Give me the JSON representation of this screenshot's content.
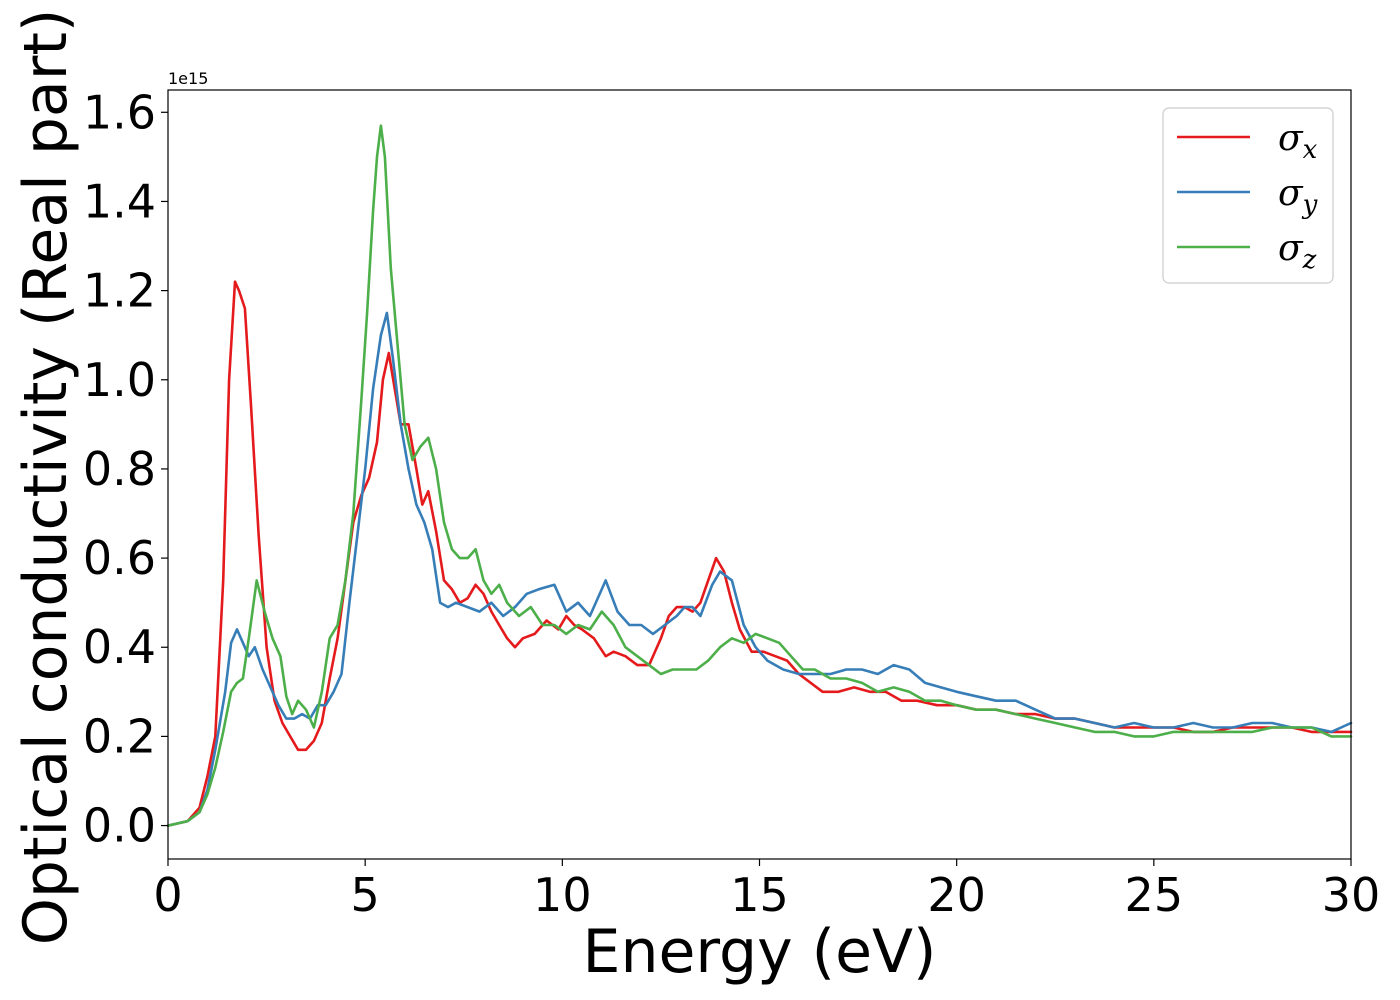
{
  "chart_data": {
    "type": "line",
    "xlabel": "Energy (eV)",
    "ylabel": "Optical conductivity (Real part)",
    "y_offset_text": "1e15",
    "xlim": [
      0,
      30
    ],
    "ylim": [
      -0.075,
      1.65
    ],
    "x_ticks": [
      0,
      5,
      10,
      15,
      20,
      25,
      30
    ],
    "x_tick_labels": [
      "0",
      "5",
      "10",
      "15",
      "20",
      "25",
      "30"
    ],
    "y_ticks": [
      0.0,
      0.2,
      0.4,
      0.6,
      0.8,
      1.0,
      1.2,
      1.4,
      1.6
    ],
    "y_tick_labels": [
      "0.0",
      "0.2",
      "0.4",
      "0.6",
      "0.8",
      "1.0",
      "1.2",
      "1.4",
      "1.6"
    ],
    "grid": false,
    "legend_position": "top-right",
    "series": [
      {
        "name": "σ",
        "subscript": "x",
        "color": "#e41a1c",
        "x": [
          0,
          0.5,
          0.8,
          1.0,
          1.2,
          1.4,
          1.55,
          1.7,
          1.8,
          1.95,
          2.1,
          2.3,
          2.5,
          2.7,
          2.9,
          3.1,
          3.3,
          3.5,
          3.7,
          3.9,
          4.1,
          4.3,
          4.5,
          4.7,
          4.9,
          5.1,
          5.3,
          5.45,
          5.6,
          5.75,
          5.9,
          6.1,
          6.3,
          6.45,
          6.6,
          6.8,
          7.0,
          7.2,
          7.4,
          7.6,
          7.8,
          8.0,
          8.2,
          8.4,
          8.6,
          8.8,
          9.0,
          9.3,
          9.6,
          9.9,
          10.1,
          10.3,
          10.5,
          10.8,
          11.1,
          11.3,
          11.6,
          11.9,
          12.2,
          12.5,
          12.7,
          12.9,
          13.1,
          13.3,
          13.5,
          13.7,
          13.9,
          14.1,
          14.3,
          14.5,
          14.8,
          15.1,
          15.4,
          15.7,
          16.0,
          16.3,
          16.6,
          17.0,
          17.4,
          17.8,
          18.2,
          18.6,
          19.0,
          19.5,
          20.0,
          20.5,
          21.0,
          21.5,
          22.0,
          22.5,
          23.0,
          23.5,
          24.0,
          24.5,
          25.0,
          25.5,
          26.0,
          26.5,
          27.0,
          27.5,
          28.0,
          28.5,
          29.0,
          29.5,
          30.0
        ],
        "values": [
          0.0,
          0.01,
          0.04,
          0.11,
          0.2,
          0.55,
          1.0,
          1.22,
          1.2,
          1.16,
          0.95,
          0.65,
          0.4,
          0.28,
          0.23,
          0.2,
          0.17,
          0.17,
          0.19,
          0.23,
          0.33,
          0.42,
          0.55,
          0.68,
          0.74,
          0.78,
          0.86,
          1.0,
          1.06,
          0.98,
          0.9,
          0.9,
          0.8,
          0.72,
          0.75,
          0.66,
          0.55,
          0.53,
          0.5,
          0.51,
          0.54,
          0.52,
          0.48,
          0.45,
          0.42,
          0.4,
          0.42,
          0.43,
          0.46,
          0.44,
          0.47,
          0.45,
          0.44,
          0.42,
          0.38,
          0.39,
          0.38,
          0.36,
          0.36,
          0.42,
          0.47,
          0.49,
          0.49,
          0.48,
          0.5,
          0.55,
          0.6,
          0.57,
          0.5,
          0.44,
          0.39,
          0.39,
          0.38,
          0.37,
          0.34,
          0.32,
          0.3,
          0.3,
          0.31,
          0.3,
          0.3,
          0.28,
          0.28,
          0.27,
          0.27,
          0.26,
          0.26,
          0.25,
          0.25,
          0.24,
          0.24,
          0.23,
          0.22,
          0.22,
          0.22,
          0.22,
          0.21,
          0.21,
          0.22,
          0.22,
          0.22,
          0.22,
          0.21,
          0.21,
          0.21
        ]
      },
      {
        "name": "σ",
        "subscript": "y",
        "color": "#377eb8",
        "x": [
          0,
          0.5,
          0.8,
          1.0,
          1.2,
          1.45,
          1.6,
          1.75,
          1.9,
          2.05,
          2.2,
          2.4,
          2.6,
          2.8,
          3.0,
          3.2,
          3.4,
          3.6,
          3.8,
          4.0,
          4.2,
          4.4,
          4.6,
          4.8,
          5.0,
          5.2,
          5.4,
          5.55,
          5.7,
          5.9,
          6.1,
          6.3,
          6.5,
          6.7,
          6.9,
          7.1,
          7.3,
          7.6,
          7.9,
          8.2,
          8.5,
          8.8,
          9.1,
          9.4,
          9.8,
          10.1,
          10.4,
          10.7,
          11.1,
          11.4,
          11.7,
          12.0,
          12.3,
          12.6,
          12.9,
          13.1,
          13.3,
          13.5,
          13.8,
          14.0,
          14.3,
          14.6,
          14.9,
          15.2,
          15.6,
          16.0,
          16.4,
          16.8,
          17.2,
          17.6,
          18.0,
          18.4,
          18.8,
          19.2,
          19.6,
          20.0,
          20.5,
          21.0,
          21.5,
          22.0,
          22.5,
          23.0,
          23.5,
          24.0,
          24.5,
          25.0,
          25.5,
          26.0,
          26.5,
          27.0,
          27.5,
          28.0,
          28.5,
          29.0,
          29.5,
          30.0
        ],
        "values": [
          0.0,
          0.01,
          0.03,
          0.08,
          0.17,
          0.3,
          0.41,
          0.44,
          0.41,
          0.38,
          0.4,
          0.35,
          0.31,
          0.27,
          0.24,
          0.24,
          0.25,
          0.24,
          0.27,
          0.27,
          0.3,
          0.34,
          0.5,
          0.65,
          0.8,
          0.98,
          1.1,
          1.15,
          1.05,
          0.9,
          0.8,
          0.72,
          0.68,
          0.62,
          0.5,
          0.49,
          0.5,
          0.49,
          0.48,
          0.5,
          0.47,
          0.49,
          0.52,
          0.53,
          0.54,
          0.48,
          0.5,
          0.47,
          0.55,
          0.48,
          0.45,
          0.45,
          0.43,
          0.45,
          0.47,
          0.49,
          0.49,
          0.47,
          0.54,
          0.57,
          0.55,
          0.45,
          0.4,
          0.37,
          0.35,
          0.34,
          0.34,
          0.34,
          0.35,
          0.35,
          0.34,
          0.36,
          0.35,
          0.32,
          0.31,
          0.3,
          0.29,
          0.28,
          0.28,
          0.26,
          0.24,
          0.24,
          0.23,
          0.22,
          0.23,
          0.22,
          0.22,
          0.23,
          0.22,
          0.22,
          0.23,
          0.23,
          0.22,
          0.22,
          0.21,
          0.23
        ]
      },
      {
        "name": "σ",
        "subscript": "z",
        "color": "#4daf4a",
        "x": [
          0,
          0.5,
          0.8,
          1.0,
          1.2,
          1.4,
          1.6,
          1.75,
          1.9,
          2.05,
          2.25,
          2.45,
          2.65,
          2.85,
          3.0,
          3.15,
          3.3,
          3.5,
          3.7,
          3.9,
          4.1,
          4.3,
          4.5,
          4.7,
          4.9,
          5.05,
          5.2,
          5.3,
          5.4,
          5.5,
          5.65,
          5.8,
          6.0,
          6.2,
          6.4,
          6.6,
          6.8,
          7.0,
          7.2,
          7.4,
          7.6,
          7.8,
          8.0,
          8.2,
          8.4,
          8.6,
          8.9,
          9.2,
          9.5,
          9.8,
          10.1,
          10.4,
          10.7,
          11.0,
          11.3,
          11.6,
          11.9,
          12.2,
          12.5,
          12.8,
          13.1,
          13.4,
          13.7,
          14.0,
          14.3,
          14.6,
          14.9,
          15.2,
          15.5,
          15.8,
          16.1,
          16.4,
          16.8,
          17.2,
          17.6,
          18.0,
          18.4,
          18.8,
          19.2,
          19.6,
          20.0,
          20.5,
          21.0,
          21.5,
          22.0,
          22.5,
          23.0,
          23.5,
          24.0,
          24.5,
          25.0,
          25.5,
          26.0,
          26.5,
          27.0,
          27.5,
          28.0,
          28.5,
          29.0,
          29.5,
          30.0
        ],
        "values": [
          0.0,
          0.01,
          0.03,
          0.07,
          0.13,
          0.21,
          0.3,
          0.32,
          0.33,
          0.42,
          0.55,
          0.48,
          0.42,
          0.38,
          0.29,
          0.25,
          0.28,
          0.26,
          0.22,
          0.3,
          0.42,
          0.45,
          0.55,
          0.7,
          0.95,
          1.15,
          1.38,
          1.5,
          1.57,
          1.5,
          1.25,
          1.1,
          0.9,
          0.82,
          0.85,
          0.87,
          0.8,
          0.68,
          0.62,
          0.6,
          0.6,
          0.62,
          0.55,
          0.52,
          0.54,
          0.5,
          0.47,
          0.49,
          0.45,
          0.45,
          0.43,
          0.45,
          0.44,
          0.48,
          0.45,
          0.4,
          0.38,
          0.36,
          0.34,
          0.35,
          0.35,
          0.35,
          0.37,
          0.4,
          0.42,
          0.41,
          0.43,
          0.42,
          0.41,
          0.38,
          0.35,
          0.35,
          0.33,
          0.33,
          0.32,
          0.3,
          0.31,
          0.3,
          0.28,
          0.28,
          0.27,
          0.26,
          0.26,
          0.25,
          0.24,
          0.23,
          0.22,
          0.21,
          0.21,
          0.2,
          0.2,
          0.21,
          0.21,
          0.21,
          0.21,
          0.21,
          0.22,
          0.22,
          0.22,
          0.2,
          0.2
        ]
      }
    ]
  }
}
